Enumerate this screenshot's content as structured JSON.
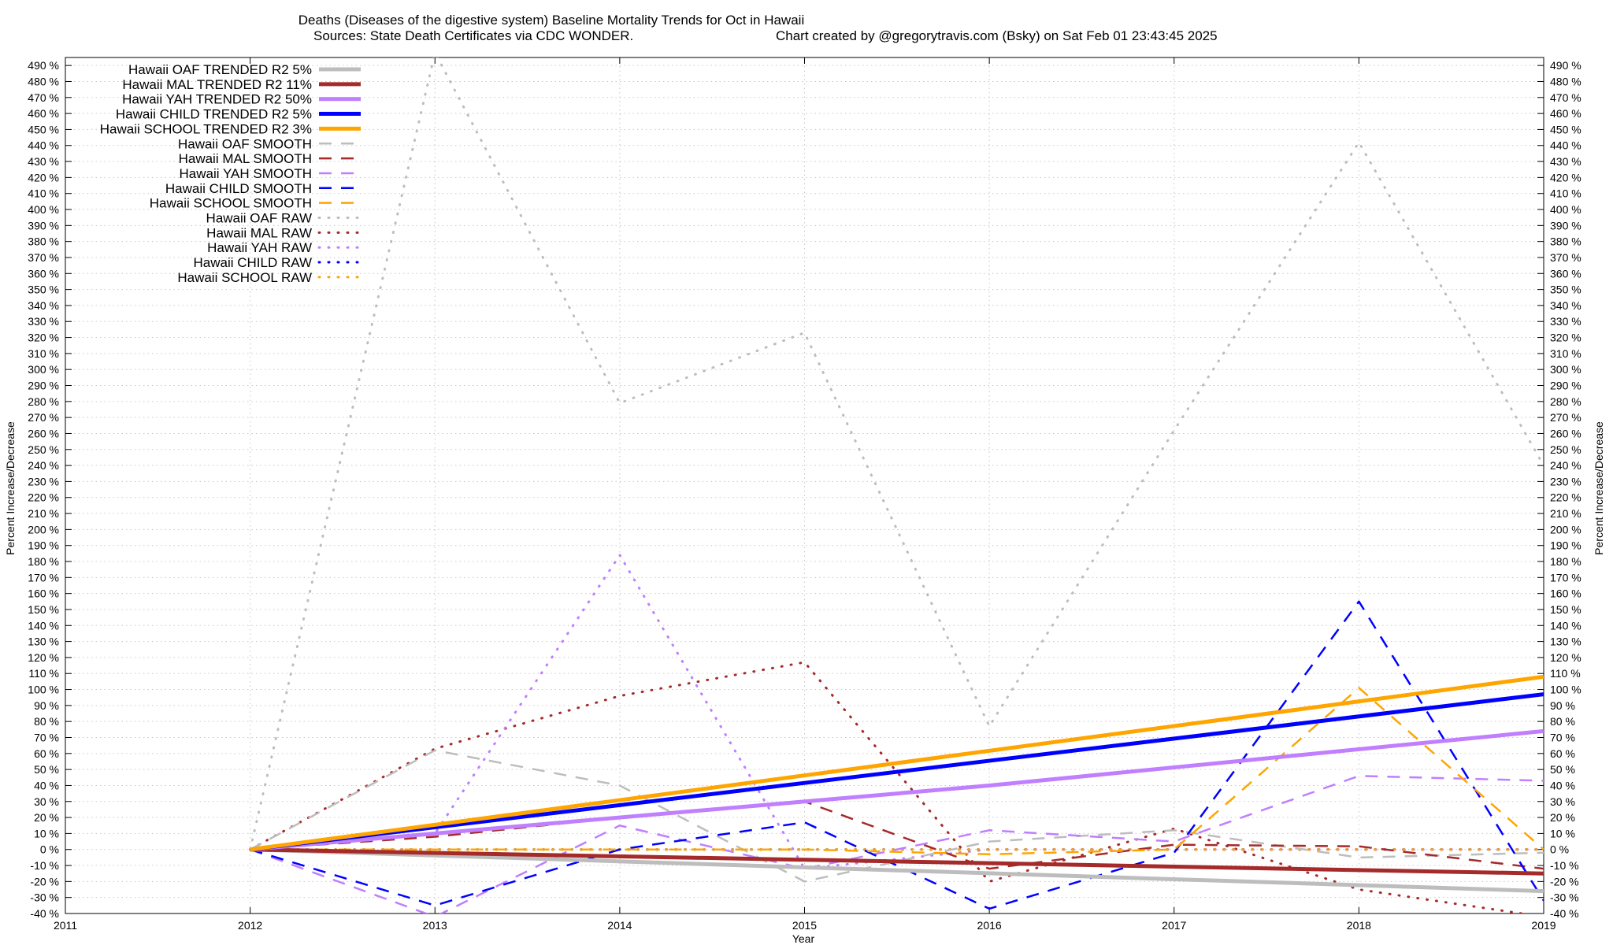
{
  "chart_data": {
    "type": "line",
    "title": "Deaths (Diseases of the digestive system)  Baseline Mortality Trends for Oct in Hawaii",
    "subtitle_left": "Sources: State Death Certificates via CDC WONDER.",
    "subtitle_right": "Chart created by @gregorytravis.com (Bsky) on Sat Feb 01 23:43:45 2025",
    "xlabel": "Year",
    "ylabel": "Percent Increase/Decrease",
    "xlim": [
      2011,
      2019
    ],
    "ylim": [
      -40,
      495
    ],
    "x_ticks": [
      "2011",
      "2012",
      "2013",
      "2014",
      "2015",
      "2016",
      "2017",
      "2018",
      "2019"
    ],
    "y_tick_values": [
      -40,
      -30,
      -20,
      -10,
      0,
      10,
      20,
      30,
      40,
      50,
      60,
      70,
      80,
      90,
      100,
      110,
      120,
      130,
      140,
      150,
      160,
      170,
      180,
      190,
      200,
      210,
      220,
      230,
      240,
      250,
      260,
      270,
      280,
      290,
      300,
      310,
      320,
      330,
      340,
      350,
      360,
      370,
      380,
      390,
      400,
      410,
      420,
      430,
      440,
      450,
      460,
      470,
      480,
      490
    ],
    "y_tick_suffix": " %",
    "grid": true,
    "legend_position": "top-left",
    "colors": {
      "oaf": "#bdbdbd",
      "mal": "#a52a2a",
      "yah": "#bf7fff",
      "child": "#0000ff",
      "school": "#ffa500"
    },
    "series": [
      {
        "name": "Hawaii OAF TRENDED R2  5%",
        "group": "oaf",
        "style": "trend",
        "x": [
          2012,
          2019
        ],
        "y": [
          0,
          -26
        ]
      },
      {
        "name": "Hawaii MAL TRENDED R2  11%",
        "group": "mal",
        "style": "trend",
        "x": [
          2012,
          2019
        ],
        "y": [
          0,
          -15
        ]
      },
      {
        "name": "Hawaii YAH TRENDED R2  50%",
        "group": "yah",
        "style": "trend",
        "x": [
          2012,
          2016,
          2019
        ],
        "y": [
          0,
          40,
          74
        ]
      },
      {
        "name": "Hawaii CHILD TRENDED R2  5%",
        "group": "child",
        "style": "trend",
        "x": [
          2012,
          2019
        ],
        "y": [
          0,
          97
        ]
      },
      {
        "name": "Hawaii SCHOOL TRENDED R2  3%",
        "group": "school",
        "style": "trend",
        "x": [
          2012,
          2019
        ],
        "y": [
          0,
          108
        ]
      },
      {
        "name": "Hawaii OAF SMOOTH",
        "group": "oaf",
        "style": "smooth",
        "x": [
          2012,
          2013,
          2014,
          2015,
          2016,
          2017,
          2018,
          2019
        ],
        "y": [
          0,
          62,
          40,
          -20,
          5,
          12,
          -5,
          -2
        ]
      },
      {
        "name": "Hawaii MAL SMOOTH",
        "group": "mal",
        "style": "smooth",
        "x": [
          2012,
          2013,
          2014,
          2015,
          2016,
          2017,
          2018,
          2019
        ],
        "y": [
          0,
          8,
          20,
          30,
          -12,
          3,
          2,
          -12
        ]
      },
      {
        "name": "Hawaii YAH SMOOTH",
        "group": "yah",
        "style": "smooth",
        "x": [
          2012,
          2013,
          2014,
          2015,
          2016,
          2017,
          2018,
          2019
        ],
        "y": [
          0,
          -42,
          15,
          -12,
          12,
          5,
          46,
          43
        ]
      },
      {
        "name": "Hawaii CHILD SMOOTH",
        "group": "child",
        "style": "smooth",
        "x": [
          2012,
          2013,
          2014,
          2015,
          2016,
          2017,
          2018,
          2019
        ],
        "y": [
          0,
          -35,
          0,
          17,
          -37,
          -2,
          155,
          -32
        ]
      },
      {
        "name": "Hawaii SCHOOL SMOOTH",
        "group": "school",
        "style": "smooth",
        "x": [
          2012,
          2013,
          2014,
          2015,
          2016,
          2017,
          2018,
          2019
        ],
        "y": [
          0,
          0,
          0,
          0,
          -3,
          0,
          101,
          0
        ]
      },
      {
        "name": "Hawaii OAF RAW",
        "group": "oaf",
        "style": "raw",
        "x": [
          2012,
          2013,
          2014,
          2015,
          2016,
          2017,
          2018,
          2019
        ],
        "y": [
          0,
          498,
          279,
          323,
          77,
          262,
          442,
          240
        ]
      },
      {
        "name": "Hawaii MAL RAW",
        "group": "mal",
        "style": "raw",
        "x": [
          2012,
          2013,
          2014,
          2015,
          2016,
          2017,
          2018,
          2019
        ],
        "y": [
          0,
          63,
          96,
          117,
          -20,
          13,
          -25,
          -42
        ]
      },
      {
        "name": "Hawaii YAH RAW",
        "group": "yah",
        "style": "raw",
        "x": [
          2012,
          2013,
          2014,
          2015,
          2016,
          2017,
          2018,
          2019
        ],
        "y": [
          0,
          10,
          184,
          -12,
          0,
          0,
          0,
          0
        ]
      },
      {
        "name": "Hawaii CHILD RAW",
        "group": "child",
        "style": "raw",
        "x": [
          2012,
          2013,
          2014,
          2015,
          2016,
          2017,
          2018,
          2019
        ],
        "y": [
          0,
          0,
          0,
          0,
          0,
          0,
          0,
          0
        ]
      },
      {
        "name": "Hawaii SCHOOL RAW",
        "group": "school",
        "style": "raw",
        "x": [
          2012,
          2013,
          2014,
          2015,
          2016,
          2017,
          2018,
          2019
        ],
        "y": [
          0,
          0,
          0,
          0,
          0,
          0,
          0,
          0
        ]
      }
    ]
  }
}
